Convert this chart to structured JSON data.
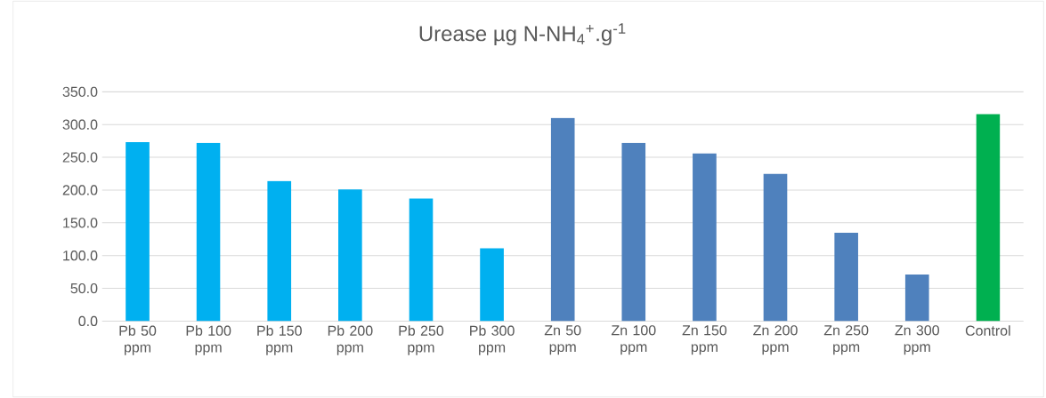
{
  "chart_data": {
    "type": "bar",
    "title": "Urease µg N-NH$_{4}$$^{+}$.g$^{-1}$",
    "categories": [
      "Pb 50 ppm",
      "Pb 100 ppm",
      "Pb 150 ppm",
      "Pb 200 ppm",
      "Pb 250 ppm",
      "Pb 300 ppm",
      "Zn 50 ppm",
      "Zn 100 ppm",
      "Zn 150 ppm",
      "Zn 200 ppm",
      "Zn 250 ppm",
      "Zn 300 ppm",
      "Control"
    ],
    "values": [
      273,
      272,
      214,
      201,
      187,
      111,
      310,
      272,
      256,
      225,
      135,
      71,
      316
    ],
    "colors": [
      "#00b0f0",
      "#00b0f0",
      "#00b0f0",
      "#00b0f0",
      "#00b0f0",
      "#00b0f0",
      "#4f81bd",
      "#4f81bd",
      "#4f81bd",
      "#4f81bd",
      "#4f81bd",
      "#4f81bd",
      "#00b050"
    ],
    "ylim": [
      0,
      350
    ],
    "yticks": [
      {
        "value": 0,
        "label": "0.0"
      },
      {
        "value": 50,
        "label": "50.0"
      },
      {
        "value": 100,
        "label": "100.0"
      },
      {
        "value": 150,
        "label": "150.0"
      },
      {
        "value": 200,
        "label": "200.0"
      },
      {
        "value": 250,
        "label": "250.0"
      },
      {
        "value": 300,
        "label": "300.0"
      },
      {
        "value": 350,
        "label": "350.0"
      }
    ],
    "grid": "y"
  }
}
